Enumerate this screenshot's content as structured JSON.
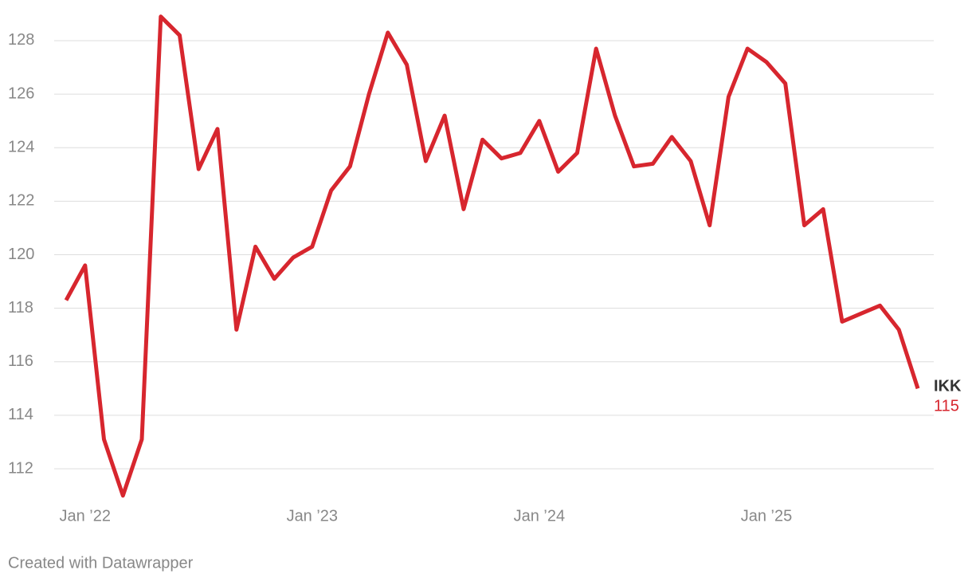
{
  "chart_data": {
    "type": "line",
    "x": [
      "2021-12",
      "2022-01",
      "2022-02",
      "2022-03",
      "2022-04",
      "2022-05",
      "2022-06",
      "2022-07",
      "2022-08",
      "2022-09",
      "2022-10",
      "2022-11",
      "2022-12",
      "2023-01",
      "2023-02",
      "2023-03",
      "2023-04",
      "2023-05",
      "2023-06",
      "2023-07",
      "2023-08",
      "2023-09",
      "2023-10",
      "2023-11",
      "2023-12",
      "2024-01",
      "2024-02",
      "2024-03",
      "2024-04",
      "2024-05",
      "2024-06",
      "2024-07",
      "2024-08",
      "2024-09",
      "2024-10",
      "2024-11",
      "2024-12",
      "2025-01",
      "2025-02",
      "2025-03",
      "2025-04",
      "2025-05",
      "2025-06",
      "2025-07",
      "2025-08",
      "2025-09"
    ],
    "series": [
      {
        "name": "IKK",
        "color": "#d7262e",
        "values": [
          118.3,
          119.6,
          113.1,
          111.0,
          113.1,
          128.9,
          128.2,
          123.2,
          124.7,
          117.2,
          120.3,
          119.1,
          119.9,
          120.3,
          122.4,
          123.3,
          126.0,
          128.3,
          127.1,
          123.5,
          125.2,
          121.7,
          124.3,
          123.6,
          123.8,
          125.0,
          123.1,
          123.8,
          127.7,
          125.2,
          123.3,
          123.4,
          124.4,
          123.5,
          121.1,
          125.9,
          127.7,
          127.2,
          126.4,
          121.1,
          121.7,
          117.5,
          117.8,
          118.1,
          117.2,
          115
        ]
      }
    ],
    "xlim": [
      "2021-12",
      "2025-09"
    ],
    "xticks": [
      {
        "value": "2022-01",
        "label": "Jan ’22"
      },
      {
        "value": "2023-01",
        "label": "Jan ’23"
      },
      {
        "value": "2024-01",
        "label": "Jan ’24"
      },
      {
        "value": "2025-01",
        "label": "Jan ’25"
      }
    ],
    "ylim": [
      111,
      129
    ],
    "yticks": [
      112,
      114,
      116,
      118,
      120,
      122,
      124,
      126,
      128
    ],
    "grid": true,
    "source": "Created with Datawrapper"
  }
}
